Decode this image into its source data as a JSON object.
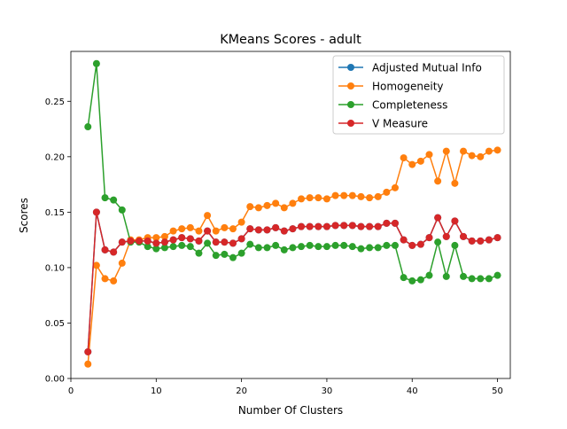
{
  "chart_data": {
    "type": "line",
    "title": "KMeans Scores - adult",
    "xlabel": "Number Of Clusters",
    "ylabel": "Scores",
    "xlim": [
      0,
      51.5
    ],
    "ylim": [
      0.0,
      0.295
    ],
    "xticks": [
      0,
      10,
      20,
      30,
      40,
      50
    ],
    "xtick_labels": [
      "0",
      "10",
      "20",
      "30",
      "40",
      "50"
    ],
    "yticks": [
      0.0,
      0.05,
      0.1,
      0.15,
      0.2,
      0.25
    ],
    "ytick_labels": [
      "0.00",
      "0.05",
      "0.10",
      "0.15",
      "0.20",
      "0.25"
    ],
    "grid": false,
    "legend_position": "top-right",
    "x": [
      2,
      3,
      4,
      5,
      6,
      7,
      8,
      9,
      10,
      11,
      12,
      13,
      14,
      15,
      16,
      17,
      18,
      19,
      20,
      21,
      22,
      23,
      24,
      25,
      26,
      27,
      28,
      29,
      30,
      31,
      32,
      33,
      34,
      35,
      36,
      37,
      38,
      39,
      40,
      41,
      42,
      43,
      44,
      45,
      46,
      47,
      48,
      49,
      50
    ],
    "series": [
      {
        "name": "Adjusted Mutual Info",
        "color": "#1f77b4",
        "values": [
          0.024,
          0.15,
          0.116,
          0.114,
          0.123,
          0.124,
          0.124,
          0.124,
          0.122,
          0.123,
          0.125,
          0.127,
          0.126,
          0.124,
          0.133,
          0.123,
          0.123,
          0.122,
          0.126,
          0.135,
          0.134,
          0.134,
          0.136,
          0.133,
          0.135,
          0.137,
          0.137,
          0.137,
          0.137,
          0.138,
          0.138,
          0.138,
          0.137,
          0.137,
          0.137,
          0.14,
          0.14,
          0.125,
          0.12,
          0.121,
          0.127,
          0.145,
          0.128,
          0.142,
          0.128,
          0.124,
          0.124,
          0.125,
          0.127
        ]
      },
      {
        "name": "Homogeneity",
        "color": "#ff7f0e",
        "values": [
          0.013,
          0.102,
          0.09,
          0.088,
          0.104,
          0.125,
          0.125,
          0.127,
          0.127,
          0.128,
          0.133,
          0.135,
          0.136,
          0.133,
          0.147,
          0.133,
          0.136,
          0.135,
          0.141,
          0.155,
          0.154,
          0.156,
          0.158,
          0.154,
          0.158,
          0.162,
          0.163,
          0.163,
          0.162,
          0.165,
          0.165,
          0.165,
          0.164,
          0.163,
          0.164,
          0.168,
          0.172,
          0.199,
          0.193,
          0.196,
          0.202,
          0.178,
          0.205,
          0.176,
          0.205,
          0.201,
          0.2,
          0.205,
          0.206
        ]
      },
      {
        "name": "Completeness",
        "color": "#2ca02c",
        "values": [
          0.227,
          0.284,
          0.163,
          0.161,
          0.152,
          0.123,
          0.123,
          0.119,
          0.117,
          0.118,
          0.119,
          0.12,
          0.119,
          0.113,
          0.122,
          0.111,
          0.112,
          0.109,
          0.113,
          0.121,
          0.118,
          0.118,
          0.12,
          0.116,
          0.118,
          0.119,
          0.12,
          0.119,
          0.119,
          0.12,
          0.12,
          0.119,
          0.117,
          0.118,
          0.118,
          0.12,
          0.12,
          0.091,
          0.088,
          0.089,
          0.093,
          0.123,
          0.092,
          0.12,
          0.092,
          0.09,
          0.09,
          0.09,
          0.093
        ]
      },
      {
        "name": "V Measure",
        "color": "#d62728",
        "values": [
          0.024,
          0.15,
          0.116,
          0.114,
          0.123,
          0.124,
          0.124,
          0.124,
          0.122,
          0.123,
          0.125,
          0.127,
          0.126,
          0.124,
          0.133,
          0.123,
          0.123,
          0.122,
          0.126,
          0.135,
          0.134,
          0.134,
          0.136,
          0.133,
          0.135,
          0.137,
          0.137,
          0.137,
          0.137,
          0.138,
          0.138,
          0.138,
          0.137,
          0.137,
          0.137,
          0.14,
          0.14,
          0.125,
          0.12,
          0.121,
          0.127,
          0.145,
          0.128,
          0.142,
          0.128,
          0.124,
          0.124,
          0.125,
          0.127
        ]
      }
    ]
  }
}
